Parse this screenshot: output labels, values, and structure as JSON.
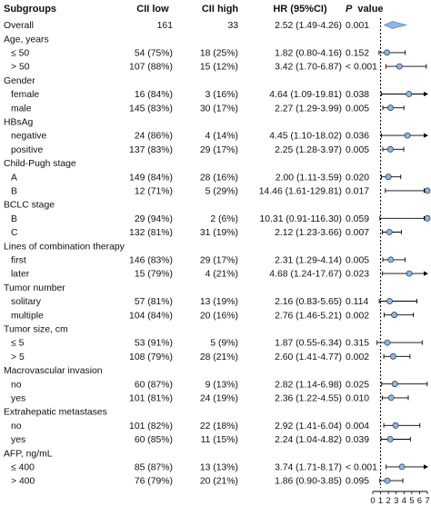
{
  "headers": {
    "subgroups": "Subgroups",
    "cii_low": "CII low",
    "cii_high": "CII high",
    "hr": "HR (95%CI)",
    "p_value": "P value"
  },
  "colors": {
    "marker": "#8db6e8",
    "marker_stroke": "#1a1a1a",
    "line": "#000000",
    "ref_line": "#000000"
  },
  "chart_data": {
    "type": "forest",
    "reference_line": 1,
    "xaxis": {
      "ticks": [
        "0",
        "1",
        "2",
        "3",
        "4",
        "5",
        "6",
        "7"
      ],
      "xlim": [
        0,
        7
      ],
      "arrow_limit": 7
    },
    "rows": [
      {
        "kind": "overall",
        "label": "Overall",
        "low": "161",
        "high": "33",
        "hr_text": "2.52 (1.49-4.26)",
        "p": "0.001",
        "hr": 2.52,
        "lo": 1.49,
        "hi": 4.26
      },
      {
        "kind": "header",
        "label": "Age, years"
      },
      {
        "kind": "sub",
        "label": "≤ 50",
        "low": "54 (75%)",
        "high": "18 (25%)",
        "hr_text": "1.82 (0.80-4.16)",
        "p": "0.152",
        "hr": 1.82,
        "lo": 0.8,
        "hi": 4.16
      },
      {
        "kind": "sub",
        "label": "> 50",
        "low": "107 (88%)",
        "high": "15 (12%)",
        "hr_text": "3.42 (1.70-6.87)",
        "p": "< 0.001",
        "hr": 3.42,
        "lo": 1.7,
        "hi": 6.87
      },
      {
        "kind": "header",
        "label": "Gender"
      },
      {
        "kind": "sub",
        "label": "female",
        "low": "16 (84%)",
        "high": "3 (16%)",
        "hr_text": "4.64 (1.09-19.81)",
        "p": "0.038",
        "hr": 4.64,
        "lo": 1.09,
        "hi": 19.81
      },
      {
        "kind": "sub",
        "label": "male",
        "low": "145 (83%)",
        "high": "30 (17%)",
        "hr_text": "2.27 (1.29-3.99)",
        "p": "0.005",
        "hr": 2.27,
        "lo": 1.29,
        "hi": 3.99
      },
      {
        "kind": "header",
        "label": "HBsAg"
      },
      {
        "kind": "sub",
        "label": "negative",
        "low": "24 (86%)",
        "high": "4 (14%)",
        "hr_text": "4.45 (1.10-18.02)",
        "p": "0.036",
        "hr": 4.45,
        "lo": 1.1,
        "hi": 18.02
      },
      {
        "kind": "sub",
        "label": "positive",
        "low": "137 (83%)",
        "high": "29 (17%)",
        "hr_text": "2.25 (1.28-3.97)",
        "p": "0.005",
        "hr": 2.25,
        "lo": 1.28,
        "hi": 3.97
      },
      {
        "kind": "header",
        "label": "Child-Pugh stage"
      },
      {
        "kind": "sub",
        "label": "A",
        "low": "149 (84%)",
        "high": "28 (16%)",
        "hr_text": "2.00 (1.11-3.59)",
        "p": "0.020",
        "hr": 2.0,
        "lo": 1.11,
        "hi": 3.59
      },
      {
        "kind": "sub",
        "label": "B",
        "low": "12 (71%)",
        "high": "5 (29%)",
        "hr_text": "14.46 (1.61-129.81)",
        "p": "0.017",
        "hr": 14.46,
        "lo": 1.61,
        "hi": 129.81
      },
      {
        "kind": "header",
        "label": "BCLC stage"
      },
      {
        "kind": "sub",
        "label": "B",
        "low": "29 (94%)",
        "high": "2 (6%)",
        "hr_text": "10.31 (0.91-116.30)",
        "p": "0.059",
        "hr": 10.31,
        "lo": 0.91,
        "hi": 116.3
      },
      {
        "kind": "sub",
        "label": "C",
        "low": "132 (81%)",
        "high": "31 (19%)",
        "hr_text": "2.12 (1.23-3.66)",
        "p": "0.007",
        "hr": 2.12,
        "lo": 1.23,
        "hi": 3.66
      },
      {
        "kind": "header",
        "label": "Lines of combination therapy"
      },
      {
        "kind": "sub",
        "label": "first",
        "low": "146 (83%)",
        "high": "29 (17%)",
        "hr_text": "2.31 (1.29-4.14)",
        "p": "0.005",
        "hr": 2.31,
        "lo": 1.29,
        "hi": 4.14
      },
      {
        "kind": "sub",
        "label": "later",
        "low": "15 (79%)",
        "high": "4 (21%)",
        "hr_text": "4.68 (1.24-17.67)",
        "p": "0.023",
        "hr": 4.68,
        "lo": 1.24,
        "hi": 17.67
      },
      {
        "kind": "header",
        "label": "Tumor number"
      },
      {
        "kind": "sub",
        "label": "solitary",
        "low": "57 (81%)",
        "high": "13 (19%)",
        "hr_text": "2.16 (0.83-5.65)",
        "p": "0.114",
        "hr": 2.16,
        "lo": 0.83,
        "hi": 5.65
      },
      {
        "kind": "sub",
        "label": "multiple",
        "low": "104 (84%)",
        "high": "20 (16%)",
        "hr_text": "2.76 (1.46-5.21)",
        "p": "0.002",
        "hr": 2.76,
        "lo": 1.46,
        "hi": 5.21
      },
      {
        "kind": "header",
        "label": "Tumor size, cm"
      },
      {
        "kind": "sub",
        "label": "≤ 5",
        "low": "53 (91%)",
        "high": "5 (9%)",
        "hr_text": "1.87 (0.55-6.34)",
        "p": "0.315",
        "hr": 1.87,
        "lo": 0.55,
        "hi": 6.34
      },
      {
        "kind": "sub",
        "label": "> 5",
        "low": "108 (79%)",
        "high": "28 (21%)",
        "hr_text": "2.60 (1.41-4.77)",
        "p": "0.002",
        "hr": 2.6,
        "lo": 1.41,
        "hi": 4.77
      },
      {
        "kind": "header",
        "label": "Macrovascular invasion"
      },
      {
        "kind": "sub",
        "label": "no",
        "low": "60 (87%)",
        "high": "9 (13%)",
        "hr_text": "2.82 (1.14-6.98)",
        "p": "0.025",
        "hr": 2.82,
        "lo": 1.14,
        "hi": 6.98
      },
      {
        "kind": "sub",
        "label": "yes",
        "low": "101 (81%)",
        "high": "24 (19%)",
        "hr_text": "2.36 (1.22-4.55)",
        "p": "0.010",
        "hr": 2.36,
        "lo": 1.22,
        "hi": 4.55
      },
      {
        "kind": "header",
        "label": "Extrahepatic metastases"
      },
      {
        "kind": "sub",
        "label": "no",
        "low": "101 (82%)",
        "high": "22 (18%)",
        "hr_text": "2.92 (1.41-6.04)",
        "p": "0.004",
        "hr": 2.92,
        "lo": 1.41,
        "hi": 6.04
      },
      {
        "kind": "sub",
        "label": "yes",
        "low": "60 (85%)",
        "high": "11 (15%)",
        "hr_text": "2.24 (1.04-4.82)",
        "p": "0.039",
        "hr": 2.24,
        "lo": 1.04,
        "hi": 4.82
      },
      {
        "kind": "header",
        "label": "AFP, ng/mL"
      },
      {
        "kind": "sub",
        "label": "≤ 400",
        "low": "85 (87%)",
        "high": "13 (13%)",
        "hr_text": "3.74 (1.71-8.17)",
        "p": "< 0.001",
        "hr": 3.74,
        "lo": 1.71,
        "hi": 8.17
      },
      {
        "kind": "sub",
        "label": "> 400",
        "low": "76 (79%)",
        "high": "20 (21%)",
        "hr_text": "1.86 (0.90-3.85)",
        "p": "0.095",
        "hr": 1.86,
        "lo": 0.9,
        "hi": 3.85
      }
    ]
  }
}
